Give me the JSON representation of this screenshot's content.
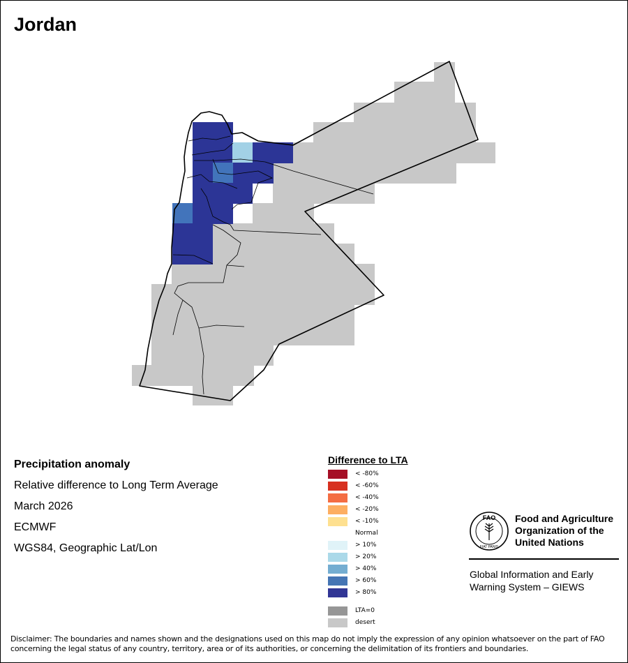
{
  "map": {
    "title": "Jordan",
    "desert_color": "#c8c8c8",
    "anomaly_colors": {
      "gt80": "#2c3596",
      "gt60": "#4274bb",
      "gt40": "#6fa8d6",
      "gt20": "#a2d1e6"
    }
  },
  "info": {
    "heading": "Precipitation anomaly",
    "subtitle": "Relative difference to Long Term Average",
    "period": "March 2026",
    "model": "ECMWF",
    "projection": "WGS84, Geographic Lat/Lon"
  },
  "legend": {
    "title": "Difference to LTA",
    "items": [
      {
        "label": "< -80%",
        "color": "#a50f26"
      },
      {
        "label": "< -60%",
        "color": "#d7301f"
      },
      {
        "label": "< -40%",
        "color": "#f46d43"
      },
      {
        "label": "< -20%",
        "color": "#fdae61"
      },
      {
        "label": "< -10%",
        "color": "#fee090"
      },
      {
        "label": "Normal",
        "color": "#ffffff"
      },
      {
        "label": "> 10%",
        "color": "#e0f3f8"
      },
      {
        "label": "> 20%",
        "color": "#abd9e9"
      },
      {
        "label": "> 40%",
        "color": "#74add1"
      },
      {
        "label": "> 60%",
        "color": "#4575b4"
      },
      {
        "label": "> 80%",
        "color": "#313695"
      }
    ],
    "extra": [
      {
        "label": "LTA=0",
        "color": "#969696"
      },
      {
        "label": "desert",
        "color": "#c8c8c8"
      }
    ]
  },
  "branding": {
    "org_line1": "Food and Agriculture",
    "org_line2": "Organization of the",
    "org_line3": "United Nations",
    "system_line1": "Global Information and Early",
    "system_line2": "Warning System – GIEWS",
    "emblem_text": "FAO",
    "emblem_motto": "FIAT PANIS"
  },
  "disclaimer": {
    "line1": "Disclaimer: The boundaries and names shown and the designations used on this map do not imply the expression of any opinion whatsoever on the part of FAO",
    "line2": "concerning the legal status of any country, territory, area or of its authorities, or concerning the delimitation of its frontiers and boundaries."
  }
}
